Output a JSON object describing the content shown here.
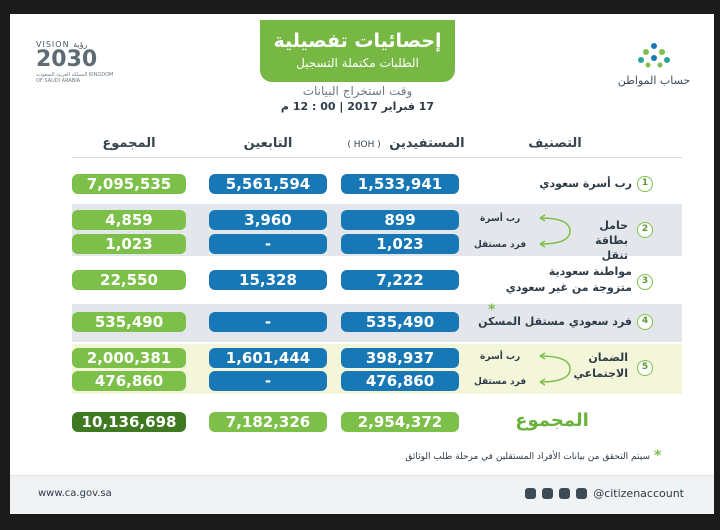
{
  "header": {
    "title": "إحصائيات تفصيلية",
    "subtitle": "الطلبات مكتملة التسجيل",
    "extract_label": "وقت استخراج البيانات",
    "extract_date": "17 فبراير 2017 | 00 : 12 م"
  },
  "vision": {
    "top": "VISION رؤية",
    "year": "2030",
    "sub": "المملكة العربية السعودية KINGDOM OF SAUDI ARABIA"
  },
  "brand": {
    "name": "حساب المواطن"
  },
  "columns": {
    "category": "التصنيف",
    "beneficiaries": "المستفيدين",
    "hoh": "( HOH )",
    "dependents": "التابعين",
    "total": "المجموع"
  },
  "rows": [
    {
      "num": "1",
      "label": "رب أسرة سعودي",
      "beneficiaries": "1,533,941",
      "dependents": "5,561,594",
      "total": "7,095,535"
    },
    {
      "num": "2",
      "label": "حامل بطاقة تنقل",
      "sub_a": "رب أسرة",
      "sub_b": "فرد مستقل",
      "beneficiaries_a": "899",
      "dependents_a": "3,960",
      "total_a": "4,859",
      "beneficiaries_b": "1,023",
      "dependents_b": "-",
      "total_b": "1,023"
    },
    {
      "num": "3",
      "label_a": "مواطنة سعودية",
      "label_b": "متزوجة من غير سعودي",
      "beneficiaries": "7,222",
      "dependents": "15,328",
      "total": "22,550"
    },
    {
      "num": "4",
      "label": "فرد سعودي مستقل المسكن",
      "star": "*",
      "beneficiaries": "535,490",
      "dependents": "-",
      "total": "535,490"
    },
    {
      "num": "5",
      "label_a": "الضمان",
      "label_b": "الاجتماعي",
      "sub_a": "رب أسرة",
      "sub_b": "فرد مستقل",
      "beneficiaries_a": "398,937",
      "dependents_a": "1,601,444",
      "total_a": "2,000,381",
      "beneficiaries_b": "476,860",
      "dependents_b": "-",
      "total_b": "476,860"
    }
  ],
  "grand_total": {
    "label": "المجموع",
    "beneficiaries": "2,954,372",
    "dependents": "7,182,326",
    "total": "10,136,698"
  },
  "note": {
    "star": "*",
    "text": "سيتم التحقق من بيانات الأفراد المستقلين في مرحلة طلب الوثائق"
  },
  "footer": {
    "website": "www.ca.gov.sa",
    "social": "@citizenaccount"
  },
  "colors": {
    "green": "#7cc04a",
    "blue": "#1878b6",
    "dark_green": "#3f7a22"
  }
}
